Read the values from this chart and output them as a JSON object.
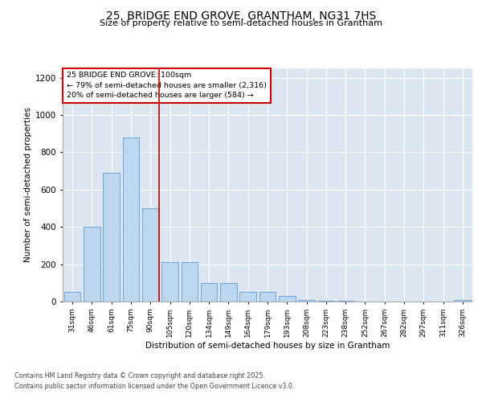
{
  "title_line1": "25, BRIDGE END GROVE, GRANTHAM, NG31 7HS",
  "title_line2": "Size of property relative to semi-detached houses in Grantham",
  "xlabel": "Distribution of semi-detached houses by size in Grantham",
  "ylabel": "Number of semi-detached properties",
  "categories": [
    "31sqm",
    "46sqm",
    "61sqm",
    "75sqm",
    "90sqm",
    "105sqm",
    "120sqm",
    "134sqm",
    "149sqm",
    "164sqm",
    "179sqm",
    "193sqm",
    "208sqm",
    "223sqm",
    "238sqm",
    "252sqm",
    "267sqm",
    "282sqm",
    "297sqm",
    "311sqm",
    "326sqm"
  ],
  "values": [
    50,
    400,
    690,
    880,
    500,
    210,
    210,
    100,
    100,
    50,
    50,
    30,
    10,
    5,
    3,
    2,
    2,
    2,
    2,
    2,
    10
  ],
  "bar_color": "#bdd7ee",
  "bar_edge_color": "#5b9bd5",
  "vline_color": "#cc0000",
  "vline_x_index": 4,
  "annotation_line1": "25 BRIDGE END GROVE: 100sqm",
  "annotation_line2": "← 79% of semi-detached houses are smaller (2,316)",
  "annotation_line3": "20% of semi-detached houses are larger (584) →",
  "footer_line1": "Contains HM Land Registry data © Crown copyright and database right 2025.",
  "footer_line2": "Contains public sector information licensed under the Open Government Licence v3.0.",
  "ylim": [
    0,
    1250
  ],
  "yticks": [
    0,
    200,
    400,
    600,
    800,
    1000,
    1200
  ],
  "background_color": "#ffffff",
  "plot_bg_color": "#dce6f1",
  "grid_color": "#ffffff"
}
